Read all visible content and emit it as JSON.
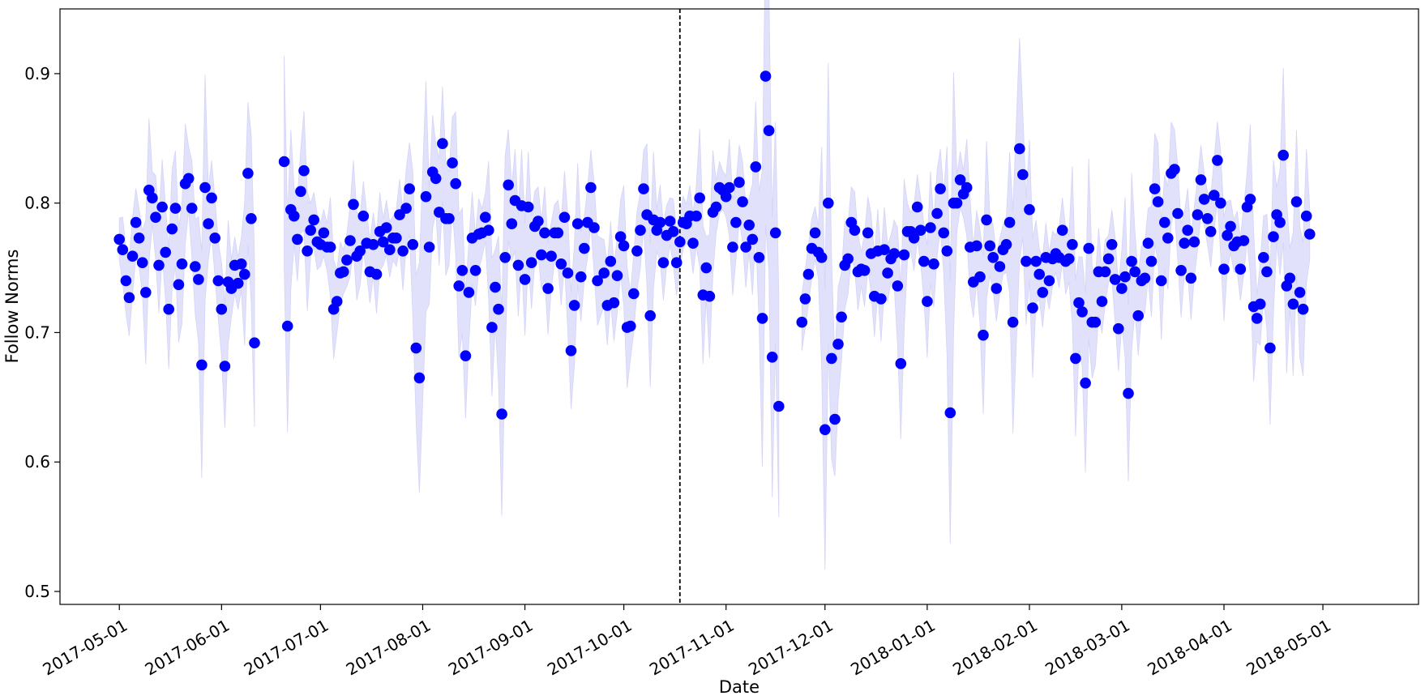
{
  "chart_data": {
    "type": "scatter",
    "xlabel": "Date",
    "ylabel": "Follow Norms",
    "ylim": [
      0.49,
      0.95
    ],
    "xlim": [
      "2017-04-13",
      "2018-05-30"
    ],
    "x_ticks": [
      "2017-05-01",
      "2017-06-01",
      "2017-07-01",
      "2017-08-01",
      "2017-09-01",
      "2017-10-01",
      "2017-11-01",
      "2017-12-01",
      "2018-01-01",
      "2018-02-01",
      "2018-03-01",
      "2018-04-01",
      "2018-05-01"
    ],
    "y_ticks": [
      0.5,
      0.6,
      0.7,
      0.8,
      0.9
    ],
    "grid": false,
    "legend": "none",
    "vline_date": "2017-10-18",
    "point_color": "#0000ff",
    "band_color": "#e1e1fb",
    "series": [
      {
        "start_date": "2017-05-01",
        "values": [
          0.772,
          0.764,
          0.74,
          0.727,
          0.759,
          0.785,
          0.773,
          0.754,
          0.731,
          0.81,
          0.804,
          0.789,
          0.752,
          0.797,
          0.762,
          0.718,
          0.78,
          0.796,
          0.737,
          0.753,
          0.815,
          0.819,
          0.796,
          0.751,
          0.741,
          0.675,
          0.812,
          0.784,
          0.804,
          0.773,
          0.74,
          0.718,
          0.674,
          0.739,
          0.734,
          0.752,
          0.738,
          0.753,
          0.745,
          0.823,
          0.788,
          0.692,
          null,
          null,
          null,
          null,
          null,
          null,
          null,
          null,
          0.832,
          0.705,
          0.795,
          0.79,
          0.772,
          0.809,
          0.825,
          0.763,
          0.779,
          0.787,
          0.77,
          0.768,
          0.777,
          0.766,
          0.766,
          0.718,
          0.724,
          0.746,
          0.747,
          0.756,
          0.771,
          0.799,
          0.759,
          0.763,
          0.79,
          0.769,
          0.747,
          0.768,
          0.745,
          0.778,
          0.77,
          0.781,
          0.764,
          0.773,
          0.773,
          0.791,
          0.763,
          0.796,
          0.811,
          0.768,
          0.688,
          0.665,
          null,
          0.805,
          0.766,
          0.824,
          0.819,
          0.793,
          0.846,
          0.788,
          0.788,
          0.831,
          0.815,
          0.736,
          0.748,
          0.682,
          0.731,
          0.773,
          0.748,
          0.776,
          0.777,
          0.789,
          0.779,
          0.704,
          0.735,
          0.718,
          0.637,
          0.758,
          0.814,
          0.784,
          0.802,
          0.752,
          0.798,
          0.741,
          0.797,
          0.754,
          0.782,
          0.786,
          0.76,
          0.777,
          0.734,
          0.759,
          0.777,
          0.777,
          0.753,
          0.789,
          0.746,
          0.686,
          0.721,
          0.784,
          0.743,
          0.765,
          0.785,
          0.812,
          0.781,
          0.74,
          null,
          0.746,
          0.721,
          0.755,
          0.723,
          0.744,
          0.774,
          0.767,
          0.704,
          0.705,
          0.73,
          0.763,
          0.779,
          0.811,
          0.791,
          0.713,
          0.787,
          0.779,
          0.785,
          0.754,
          0.775,
          0.786,
          0.778,
          0.754,
          0.77,
          0.785,
          0.784,
          0.79,
          0.769,
          0.79,
          0.804,
          0.729,
          0.75,
          0.728,
          0.793,
          0.797,
          0.812,
          0.81,
          0.805,
          0.812,
          0.766,
          0.785,
          0.816,
          0.801,
          0.766,
          0.783,
          0.772,
          0.828,
          0.758,
          0.711,
          0.898,
          0.856,
          0.681,
          0.777,
          0.643,
          null,
          null,
          null,
          null,
          null,
          null,
          0.708,
          0.726,
          0.745,
          0.765,
          0.777,
          0.762,
          0.758,
          0.625,
          0.8,
          0.68,
          0.633,
          0.691,
          0.712,
          0.752,
          0.757,
          0.785,
          0.779,
          0.747,
          0.749,
          0.748,
          0.777,
          0.761,
          0.728,
          0.763,
          0.726,
          0.764,
          0.746,
          0.757,
          0.761,
          0.736,
          0.676,
          0.76,
          0.778,
          0.778,
          0.773,
          0.797,
          0.779,
          0.755,
          0.724,
          0.781,
          0.753,
          0.792,
          0.811,
          0.777,
          0.763,
          0.638,
          0.8,
          0.8,
          0.818,
          0.807,
          0.812,
          0.766,
          0.739,
          0.767,
          0.743,
          0.698,
          0.787,
          0.767,
          0.758,
          0.734,
          0.751,
          0.764,
          0.768,
          0.785,
          0.708,
          null,
          0.842,
          0.822,
          0.755,
          0.795,
          0.719,
          0.755,
          0.745,
          0.731,
          0.758,
          0.74,
          0.757,
          0.761,
          0.758,
          0.779,
          0.755,
          0.757,
          0.768,
          0.68,
          0.723,
          0.716,
          0.661,
          0.765,
          0.708,
          0.708,
          0.747,
          0.724,
          0.747,
          0.757,
          0.768,
          0.741,
          0.703,
          0.734,
          0.743,
          0.653,
          0.755,
          0.747,
          0.713,
          0.74,
          0.742,
          0.769,
          0.755,
          0.811,
          0.801,
          0.74,
          0.785,
          0.773,
          0.823,
          0.826,
          0.792,
          0.748,
          0.769,
          0.779,
          0.742,
          0.77,
          0.791,
          0.818,
          0.803,
          0.788,
          0.778,
          0.806,
          0.833,
          0.8,
          0.749,
          0.775,
          0.782,
          0.767,
          0.77,
          0.749,
          0.771,
          0.797,
          0.803,
          0.72,
          0.711,
          0.722,
          0.758,
          0.747,
          0.688,
          0.774,
          0.791,
          0.785,
          0.837,
          0.736,
          0.742,
          0.722,
          0.801,
          0.731,
          0.718,
          0.79,
          0.776
        ]
      }
    ]
  }
}
